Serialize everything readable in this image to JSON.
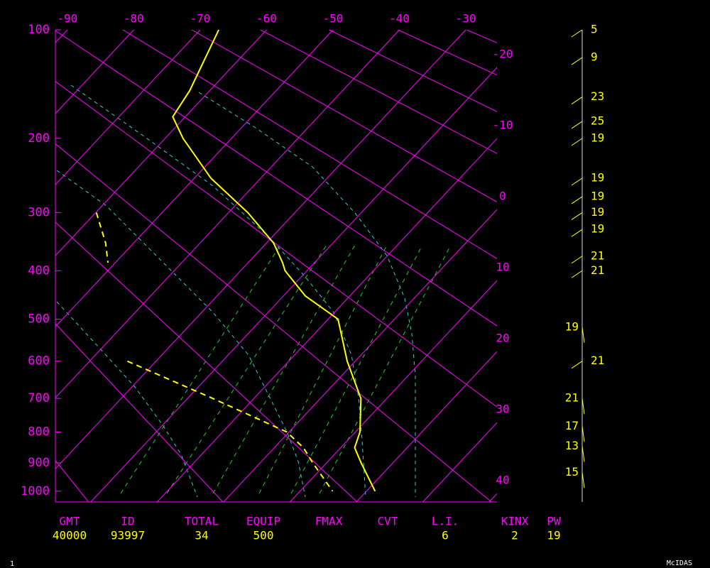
{
  "chart_data": {
    "type": "skewt",
    "pressure": [
      100,
      150,
      176,
      200,
      250,
      300,
      350,
      385,
      400,
      450,
      500,
      600,
      700,
      800,
      850,
      900,
      1000
    ],
    "series": [
      {
        "color": "#ffff00",
        "style": "solid",
        "values": [
          -67.2,
          -63.0,
          -61.9,
          -57.3,
          -47.5,
          -37.1,
          -28.9,
          -24.8,
          -23.3,
          -16.7,
          -8.5,
          -1.2,
          6.1,
          10.7,
          12.1,
          15.2,
          21.3
        ]
      },
      {
        "color": "#ffff00",
        "style": "dashed",
        "values": [
          null,
          null,
          null,
          null,
          null,
          -59.9,
          -54.2,
          -51.1,
          null,
          null,
          null,
          -34.3,
          -16.2,
          -0.3,
          4.4,
          7.9,
          14.9
        ]
      }
    ],
    "ylim": [
      1040,
      100
    ],
    "yticks": [
      100,
      200,
      300,
      400,
      500,
      600,
      700,
      800,
      900,
      1000
    ],
    "xlim": [
      -91.8,
      -25.3
    ],
    "xticks": [
      -90,
      -80,
      -70,
      -60,
      -50,
      -40,
      -30,
      -20,
      -10,
      0,
      10,
      20,
      30,
      40
    ],
    "axis_color": "#ff00ff",
    "winds": {
      "pressure": [
        100,
        121,
        156,
        181,
        200,
        250,
        276,
        300,
        327,
        373,
        400,
        518,
        600,
        700,
        782,
        845,
        933
      ],
      "speed": [
        5,
        9,
        23,
        25,
        19,
        19,
        19,
        19,
        19,
        21,
        21,
        19,
        21,
        21,
        17,
        13,
        15
      ],
      "color": "#ffff00"
    }
  },
  "stats": [
    {
      "label": "GMT",
      "value": 40000
    },
    {
      "label": "ID",
      "value": 93997
    },
    {
      "label": "TOTAL",
      "value": 34
    },
    {
      "label": "EQUIP",
      "value": 500
    },
    {
      "label": "FMAX"
    },
    {
      "label": "CVT"
    },
    {
      "label": "L.I.",
      "value": 6
    },
    {
      "label": "KINX",
      "value": 2
    },
    {
      "label": "PW",
      "value": 19
    }
  ],
  "footer": {
    "page": 1,
    "brand": "McIDAS"
  }
}
